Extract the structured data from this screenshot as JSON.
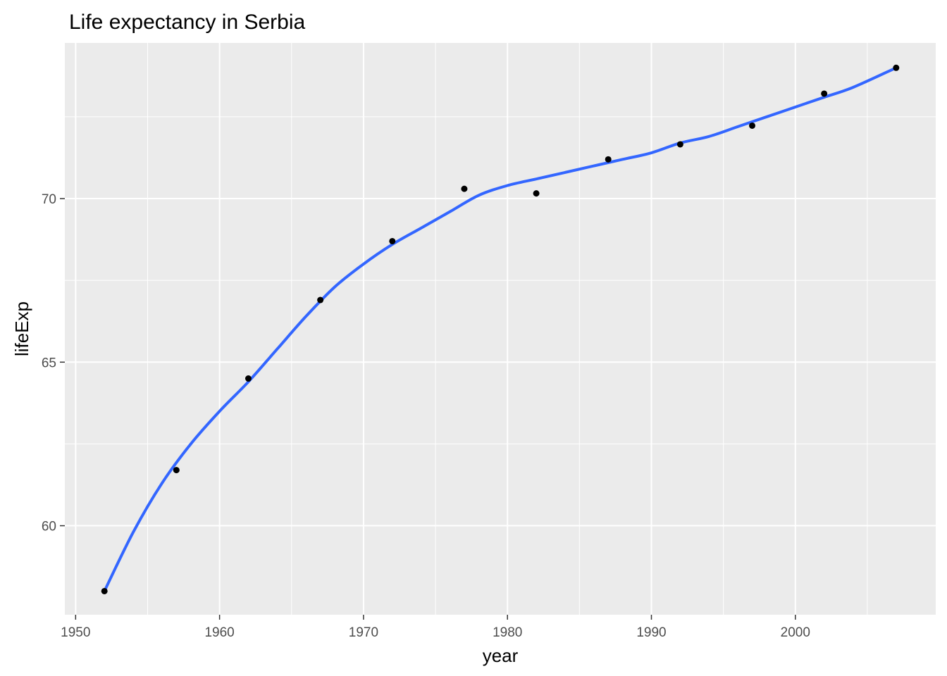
{
  "chart_data": {
    "type": "scatter",
    "title": "Life expectancy in Serbia",
    "xlabel": "year",
    "ylabel": "lifeExp",
    "xlim": [
      1949.25,
      2009.75
    ],
    "ylim": [
      57.278,
      74.759
    ],
    "x_major_ticks": [
      1950,
      1960,
      1970,
      1980,
      1990,
      2000
    ],
    "x_minor_ticks": [
      1955,
      1965,
      1975,
      1985,
      1995,
      2005
    ],
    "y_major_ticks": [
      60,
      65,
      70
    ],
    "y_minor_ticks": [
      62.5,
      67.5,
      72.5
    ],
    "x_tick_labels": [
      "1950",
      "1960",
      "1970",
      "1980",
      "1990",
      "2000"
    ],
    "y_tick_labels": [
      "60",
      "65",
      "70"
    ],
    "grid": true,
    "series": [
      {
        "type": "scatter",
        "color": "#000000",
        "x": [
          1952,
          1957,
          1962,
          1967,
          1972,
          1977,
          1982,
          1987,
          1992,
          1997,
          2002,
          2007
        ],
        "y": [
          58.0,
          61.7,
          64.5,
          66.9,
          68.7,
          70.3,
          70.16,
          71.2,
          71.66,
          72.23,
          73.21,
          74.0
        ]
      },
      {
        "type": "line",
        "color": "#3366ff",
        "x": [
          1952,
          1954,
          1956,
          1958,
          1960,
          1962,
          1964,
          1966,
          1968,
          1970,
          1972,
          1974,
          1976,
          1978,
          1980,
          1982,
          1984,
          1986,
          1988,
          1990,
          1992,
          1994,
          1996,
          1998,
          2000,
          2002,
          2004,
          2007
        ],
        "y": [
          58.0,
          59.8,
          61.3,
          62.5,
          63.5,
          64.4,
          65.4,
          66.4,
          67.3,
          68.0,
          68.6,
          69.1,
          69.6,
          70.1,
          70.4,
          70.6,
          70.8,
          71.0,
          71.2,
          71.4,
          71.7,
          71.9,
          72.2,
          72.5,
          72.8,
          73.1,
          73.4,
          74.0
        ]
      }
    ]
  }
}
